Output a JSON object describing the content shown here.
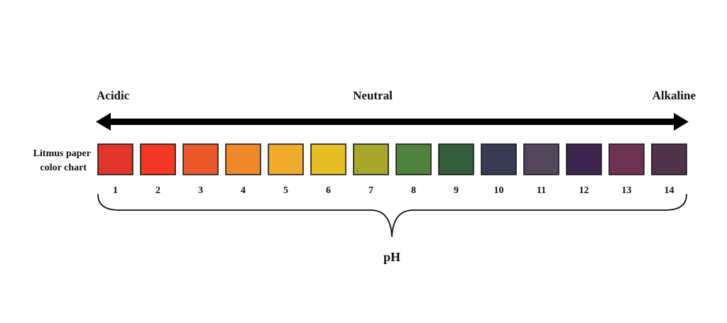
{
  "scale": {
    "left_label": "Acidic",
    "center_label": "Neutral",
    "right_label": "Alkaline"
  },
  "chart_label": {
    "line1": "Litmus paper",
    "line2": "color chart"
  },
  "swatches": [
    {
      "ph": "1",
      "color": "#e3342b"
    },
    {
      "ph": "2",
      "color": "#f33823"
    },
    {
      "ph": "3",
      "color": "#e95828"
    },
    {
      "ph": "4",
      "color": "#ef8826"
    },
    {
      "ph": "5",
      "color": "#f0ab2c"
    },
    {
      "ph": "6",
      "color": "#e6bf25"
    },
    {
      "ph": "7",
      "color": "#a8a72c"
    },
    {
      "ph": "8",
      "color": "#4f833d"
    },
    {
      "ph": "9",
      "color": "#345d3b"
    },
    {
      "ph": "10",
      "color": "#383a56"
    },
    {
      "ph": "11",
      "color": "#54465b"
    },
    {
      "ph": "12",
      "color": "#3e2650"
    },
    {
      "ph": "13",
      "color": "#6d3252"
    },
    {
      "ph": "14",
      "color": "#53334b"
    }
  ],
  "axis_label": "pH",
  "colors": {
    "arrow": "#000000",
    "outline": "#1a1a1a"
  }
}
